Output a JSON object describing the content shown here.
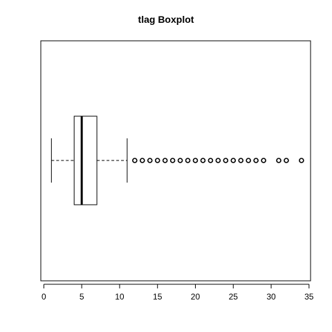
{
  "chart_data": {
    "type": "boxplot",
    "title": "tlag Boxplot",
    "orientation": "horizontal",
    "xlabel": "",
    "ylabel": "",
    "xlim": [
      -0.4,
      35.2
    ],
    "xticks": [
      0,
      5,
      10,
      15,
      20,
      25,
      30,
      35
    ],
    "xtick_labels": [
      "0",
      "5",
      "10",
      "15",
      "20",
      "25",
      "30",
      "35"
    ],
    "box": {
      "whisker_low": 1,
      "q1": 4,
      "median": 5,
      "q3": 7,
      "whisker_high": 11
    },
    "outliers": [
      12,
      13,
      14,
      15,
      16,
      17,
      18,
      19,
      20,
      21,
      22,
      23,
      24,
      25,
      26,
      27,
      28,
      29,
      31,
      32,
      34
    ],
    "grid": false,
    "colors": {
      "stroke": "#000000",
      "background": "#ffffff"
    }
  }
}
